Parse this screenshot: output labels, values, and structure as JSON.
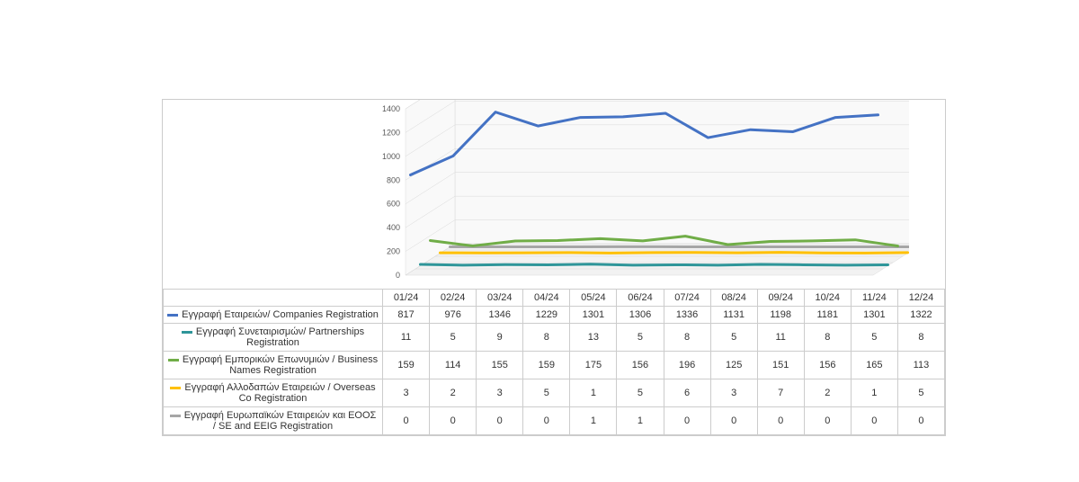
{
  "chart": {
    "type": "line-3d-combo",
    "background_color": "#ffffff",
    "border_color": "#cccccc",
    "floor_color": "#f2f2f2",
    "wall_color": "#f9f9f9",
    "gridline_color": "#d9d9d9",
    "axis_text_color": "#595959",
    "label_fontsize": 11,
    "ylim": [
      0,
      1400
    ],
    "ytick_step": 200,
    "yticks": [
      0,
      200,
      400,
      600,
      800,
      1000,
      1200,
      1400
    ],
    "depth_rows": 5,
    "categories": [
      "01/24",
      "02/24",
      "03/24",
      "04/24",
      "05/24",
      "06/24",
      "07/24",
      "08/24",
      "09/24",
      "10/24",
      "11/24",
      "12/24"
    ],
    "series": [
      {
        "name": "Εγγραφή Εταιρειών/ Companies Registration",
        "color": "#4472c4",
        "line_width": 3,
        "values": [
          817,
          976,
          1346,
          1229,
          1301,
          1306,
          1336,
          1131,
          1198,
          1181,
          1301,
          1322
        ]
      },
      {
        "name": "Εγγραφή Συνεταιρισμών/ Partnerships Registration",
        "color": "#2e9599",
        "line_width": 3,
        "values": [
          11,
          5,
          9,
          8,
          13,
          5,
          8,
          5,
          11,
          8,
          5,
          8
        ]
      },
      {
        "name": "Εγγραφή Εμπορικών Επωνυμιών / Business Names Registration",
        "color": "#70ad47",
        "line_width": 3,
        "values": [
          159,
          114,
          155,
          159,
          175,
          156,
          196,
          125,
          151,
          156,
          165,
          113
        ]
      },
      {
        "name": "Εγγραφή Αλλοδαπών Εταιρειών / Overseas Co Registration",
        "color": "#ffc000",
        "line_width": 3,
        "values": [
          3,
          2,
          3,
          5,
          1,
          5,
          6,
          3,
          7,
          2,
          1,
          5
        ]
      },
      {
        "name": "Εγγραφή Ευρωπαϊκών Εταιρειών και ΕΟΟΣ / SE and EEIG Registration",
        "color": "#a6a6a6",
        "line_width": 3,
        "values": [
          0,
          0,
          0,
          0,
          1,
          1,
          0,
          0,
          0,
          0,
          0,
          0
        ]
      }
    ]
  }
}
